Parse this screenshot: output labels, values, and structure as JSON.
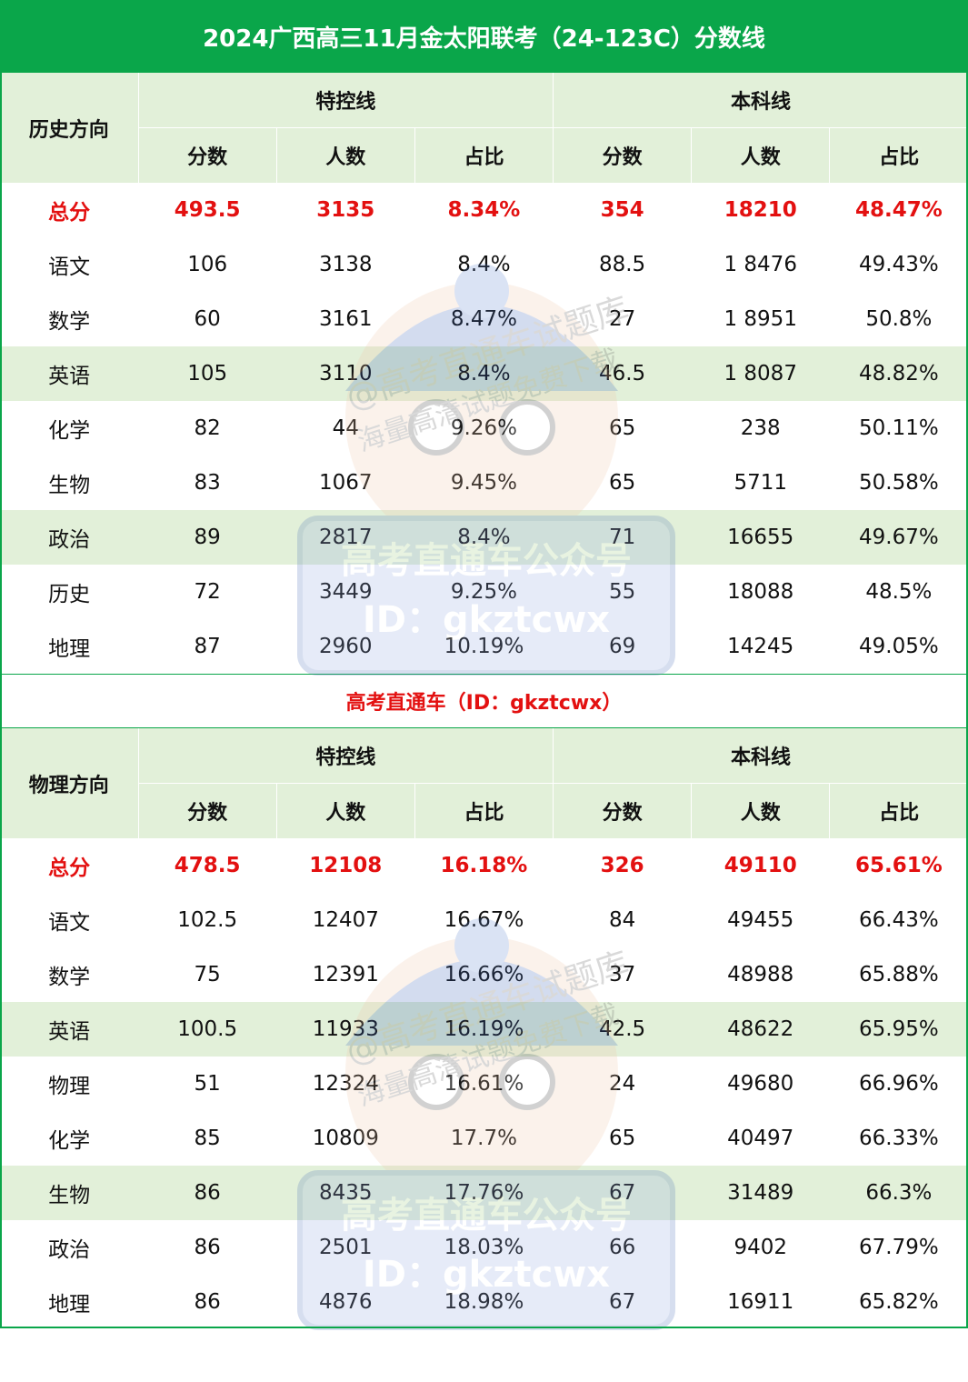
{
  "title": "2024广西高三11月金太阳联考（24-123C）分数线",
  "group_labels": {
    "special": "特控线",
    "undergrad": "本科线"
  },
  "sub_headers": [
    "分数",
    "人数",
    "占比",
    "分数",
    "人数",
    "占比"
  ],
  "history": {
    "direction": "历史方向",
    "rows": [
      {
        "subject": "总分",
        "cells": [
          "493.5",
          "3135",
          "8.34%",
          "354",
          "18210",
          "48.47%"
        ]
      },
      {
        "subject": "语文",
        "cells": [
          "106",
          "3138",
          "8.4%",
          "88.5",
          "1 8476",
          "49.43%"
        ]
      },
      {
        "subject": "数学",
        "cells": [
          "60",
          "3161",
          "8.47%",
          "27",
          "1 8951",
          "50.8%"
        ]
      },
      {
        "subject": "英语",
        "cells": [
          "105",
          "3110",
          "8.4%",
          "46.5",
          "1 8087",
          "48.82%"
        ]
      },
      {
        "subject": "化学",
        "cells": [
          "82",
          "44",
          "9.26%",
          "65",
          "238",
          "50.11%"
        ]
      },
      {
        "subject": "生物",
        "cells": [
          "83",
          "1067",
          "9.45%",
          "65",
          "5711",
          "50.58%"
        ]
      },
      {
        "subject": "政治",
        "cells": [
          "89",
          "2817",
          "8.4%",
          "71",
          "16655",
          "49.67%"
        ]
      },
      {
        "subject": "历史",
        "cells": [
          "72",
          "3449",
          "9.25%",
          "55",
          "18088",
          "48.5%"
        ]
      },
      {
        "subject": "地理",
        "cells": [
          "87",
          "2960",
          "10.19%",
          "69",
          "14245",
          "49.05%"
        ]
      }
    ]
  },
  "mid_label": "高考直通车（ID：gkztcwx）",
  "physics": {
    "direction": "物理方向",
    "rows": [
      {
        "subject": "总分",
        "cells": [
          "478.5",
          "12108",
          "16.18%",
          "326",
          "49110",
          "65.61%"
        ]
      },
      {
        "subject": "语文",
        "cells": [
          "102.5",
          "12407",
          "16.67%",
          "84",
          "49455",
          "66.43%"
        ]
      },
      {
        "subject": "数学",
        "cells": [
          "75",
          "12391",
          "16.66%",
          "37",
          "48988",
          "65.88%"
        ]
      },
      {
        "subject": "英语",
        "cells": [
          "100.5",
          "11933",
          "16.19%",
          "42.5",
          "48622",
          "65.95%"
        ]
      },
      {
        "subject": "物理",
        "cells": [
          "51",
          "12324",
          "16.61%",
          "24",
          "49680",
          "66.96%"
        ]
      },
      {
        "subject": "化学",
        "cells": [
          "85",
          "10809",
          "17.7%",
          "65",
          "40497",
          "66.33%"
        ]
      },
      {
        "subject": "生物",
        "cells": [
          "86",
          "8435",
          "17.76%",
          "67",
          "31489",
          "66.3%"
        ]
      },
      {
        "subject": "政治",
        "cells": [
          "86",
          "2501",
          "18.03%",
          "66",
          "9402",
          "67.79%"
        ]
      },
      {
        "subject": "地理",
        "cells": [
          "86",
          "4876",
          "18.98%",
          "67",
          "16911",
          "65.82%"
        ]
      }
    ]
  },
  "watermark": {
    "lines": [
      "高考直通车公众号",
      "ID：gkztcwx",
      "@高考直通车试题库",
      "海量高清试题免费下载"
    ]
  },
  "colors": {
    "header_green": "#0aa64a",
    "shade": "#e2f0d9",
    "total_red": "#e31010"
  }
}
